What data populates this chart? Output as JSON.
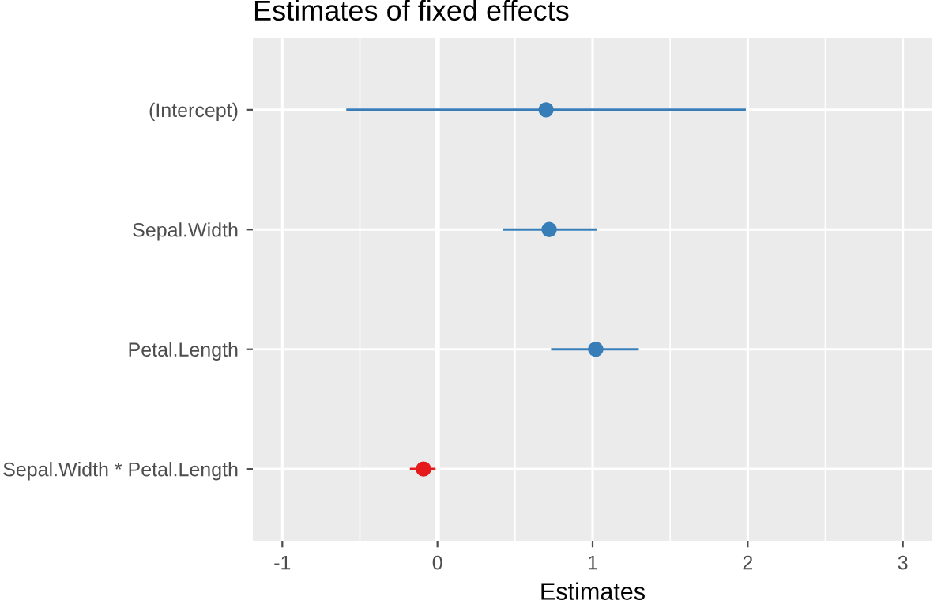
{
  "chart_data": {
    "type": "scatter",
    "orientation": "horizontal",
    "title": "Estimates of fixed effects",
    "xlabel": "Estimates",
    "categories": [
      "(Intercept)",
      "Sepal.Width",
      "Petal.Length",
      "Sepal.Width * Petal.Length"
    ],
    "values": [
      0.7,
      0.72,
      1.02,
      -0.09
    ],
    "errors": [
      [
        -0.58,
        1.98
      ],
      [
        0.43,
        1.02
      ],
      [
        0.74,
        1.29
      ],
      [
        -0.17,
        -0.02
      ]
    ],
    "colors": [
      "#377eb8",
      "#377eb8",
      "#377eb8",
      "#e41a1c"
    ],
    "xlim": [
      -1.19,
      3.19
    ],
    "xticks": [
      -1,
      0,
      1,
      2,
      3
    ],
    "ref_lines": [
      {
        "axis": "x",
        "value": 0,
        "color": "#ffffff"
      }
    ],
    "grid": true,
    "marker": "circle"
  }
}
